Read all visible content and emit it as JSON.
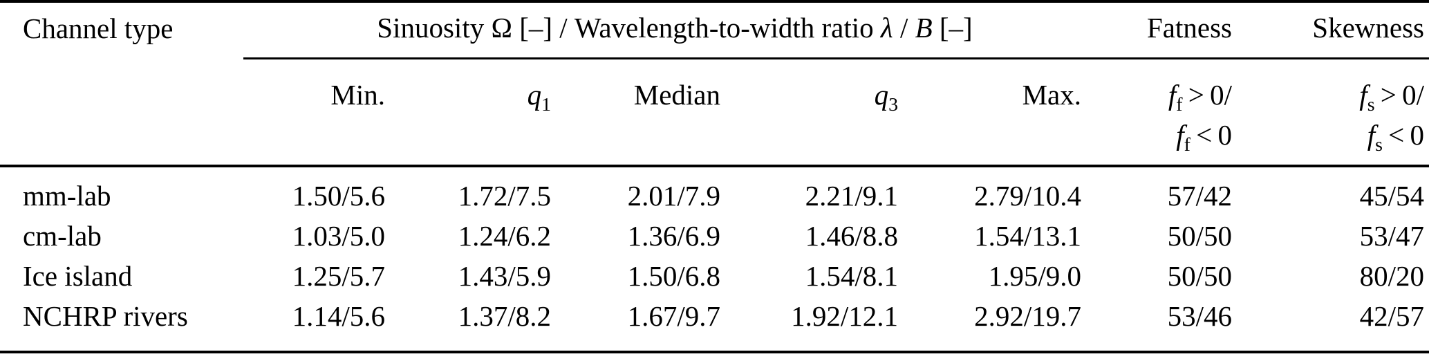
{
  "colors": {
    "background": "#ffffff",
    "text": "#000000",
    "rule": "#000000"
  },
  "table": {
    "header": {
      "channel_type": "Channel type",
      "group": {
        "part1": "Sinuosity ",
        "omega": "Ω",
        "part2": " [–] / Wavelength-to-width ratio ",
        "lambda": "λ",
        "slash": " / ",
        "b": "B",
        "part3": " [–]"
      },
      "fatness": "Fatness",
      "skewness": "Skewness"
    },
    "subheader": {
      "min": "Min.",
      "q1_base": "q",
      "q1_sub": "1",
      "median": "Median",
      "q3_base": "q",
      "q3_sub": "3",
      "max": "Max.",
      "fatness_line1_f": "f",
      "fatness_line1_sub": "f",
      "fatness_line1_rest": " > 0/",
      "fatness_line2_f": "f",
      "fatness_line2_sub": "f",
      "fatness_line2_rest": " < 0",
      "skewness_line1_f": "f",
      "skewness_line1_sub": "s",
      "skewness_line1_rest": " > 0/",
      "skewness_line2_f": "f",
      "skewness_line2_sub": "s",
      "skewness_line2_rest": " < 0"
    },
    "rows": [
      {
        "label": "mm-lab",
        "min": "1.50/5.6",
        "q1": "1.72/7.5",
        "median": "2.01/7.9",
        "q3": "2.21/9.1",
        "max": "2.79/10.4",
        "fatness": "57/42",
        "skewness": "45/54"
      },
      {
        "label": "cm-lab",
        "min": "1.03/5.0",
        "q1": "1.24/6.2",
        "median": "1.36/6.9",
        "q3": "1.46/8.8",
        "max": "1.54/13.1",
        "fatness": "50/50",
        "skewness": "53/47"
      },
      {
        "label": "Ice island",
        "min": "1.25/5.7",
        "q1": "1.43/5.9",
        "median": "1.50/6.8",
        "q3": "1.54/8.1",
        "max": "1.95/9.0",
        "fatness": "50/50",
        "skewness": "80/20"
      },
      {
        "label": "NCHRP rivers",
        "min": "1.14/5.6",
        "q1": "1.37/8.2",
        "median": "1.67/9.7",
        "q3": "1.92/12.1",
        "max": "2.92/19.7",
        "fatness": "53/46",
        "skewness": "42/57"
      }
    ]
  }
}
